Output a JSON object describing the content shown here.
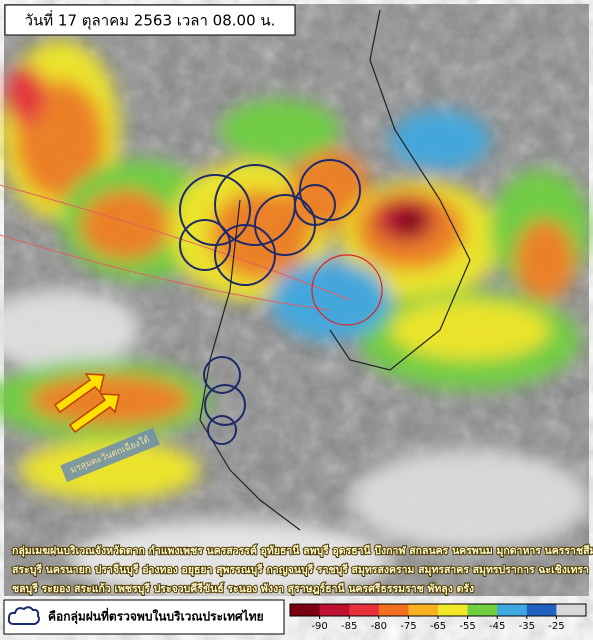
{
  "header": {
    "title": "วันที่ 17 ตุลาคม 2563 เวลา 08.00 น."
  },
  "map": {
    "annotation": "มรสุมตะวันตกเฉียงใต้",
    "description": [
      "กลุ่มเมฆฝนบริเวณจังหวัดตาก กำแพงเพชร นครสวรรค์ อุทัยธานี ลพบุรี อุดรธานี บึงกาฬ สกลนคร นครพนม มุกดาหาร นครราชสีมา",
      "สระบุรี นครนายก ปราจีนบุรี อ่างทอง อยุธยา สุพรรณบุรี กาญจนบุรี ราชบุรี สมุทรสงคราม สมุทรสาคร สมุทรปราการ ฉะเชิงเทรา",
      "ชลบุรี ระยอง สระแก้ว เพชรบุรี ประจวบคีรีขันธ์ ระนอง พังงา สุราษฎร์ธานี นครศรีธรรมราช พัทลุง ตรัง"
    ]
  },
  "legend": {
    "label": "คือกลุ่มฝนที่ตรวจพบในบริเวณประเทศไทย"
  },
  "colorbar": {
    "ticks": [
      -90,
      -85,
      -80,
      -75,
      -65,
      -55,
      -45,
      -35,
      -25
    ],
    "colors": [
      "#7a0010",
      "#c01030",
      "#e8303a",
      "#f07020",
      "#f8b020",
      "#f0e828",
      "#70d040",
      "#40a8e0",
      "#2060c0",
      "#d8d8d8"
    ]
  }
}
